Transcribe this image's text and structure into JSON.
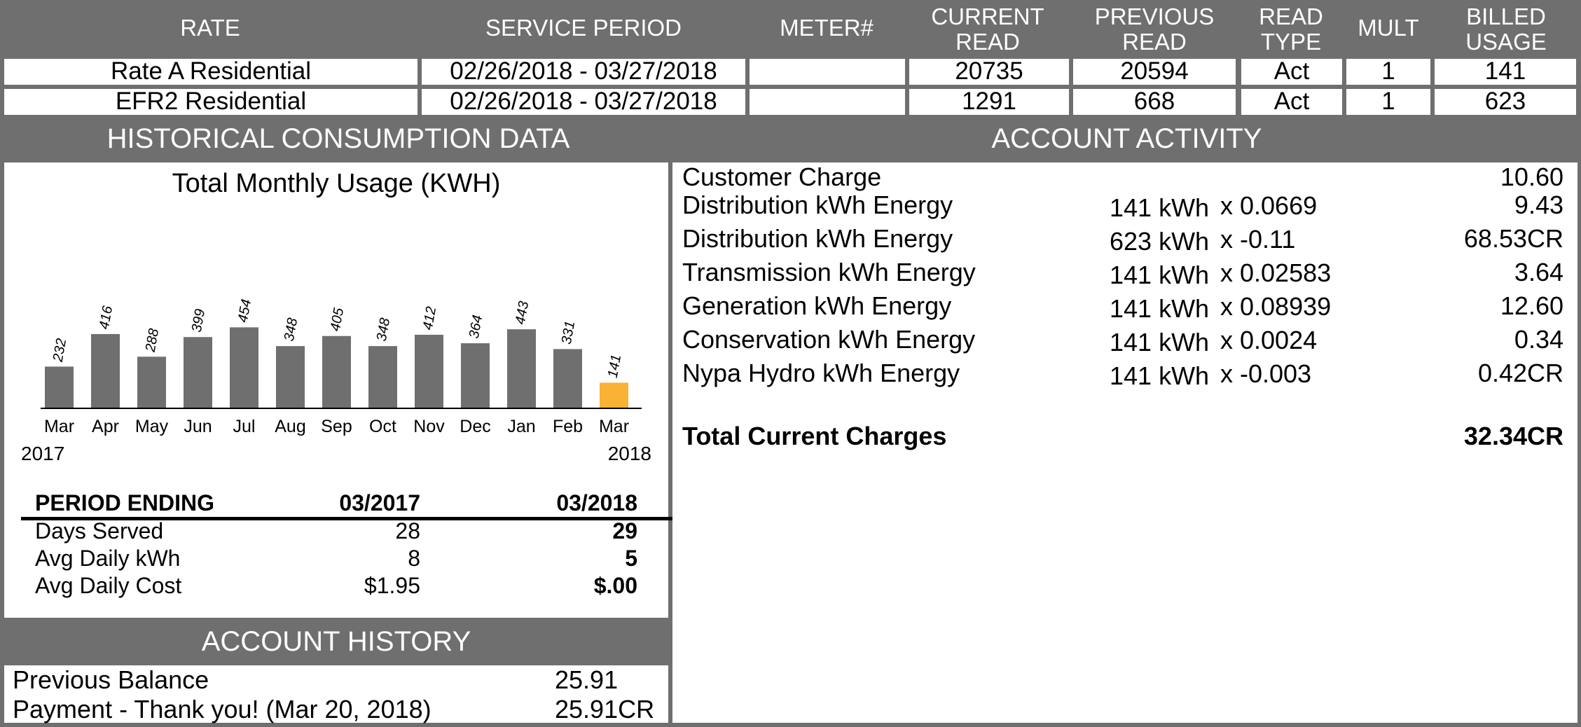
{
  "meter_table": {
    "headers": [
      {
        "line1": "RATE",
        "line2": ""
      },
      {
        "line1": "SERVICE PERIOD",
        "line2": ""
      },
      {
        "line1": "METER#",
        "line2": ""
      },
      {
        "line1": "CURRENT",
        "line2": "READ"
      },
      {
        "line1": "PREVIOUS",
        "line2": "READ"
      },
      {
        "line1": "READ",
        "line2": "TYPE"
      },
      {
        "line1": "MULT",
        "line2": ""
      },
      {
        "line1": "BILLED",
        "line2": "USAGE"
      }
    ],
    "rows": [
      {
        "rate": "Rate A Residential",
        "period": "02/26/2018 - 03/27/2018",
        "meter": "",
        "current": "20735",
        "previous": "20594",
        "type": "Act",
        "mult": "1",
        "usage": "141"
      },
      {
        "rate": "EFR2 Residential",
        "period": "02/26/2018 - 03/27/2018",
        "meter": "",
        "current": "1291",
        "previous": "668",
        "type": "Act",
        "mult": "1",
        "usage": "623"
      }
    ]
  },
  "historical": {
    "title": "HISTORICAL CONSUMPTION DATA",
    "chart_title": "Total Monthly Usage (KWH)",
    "year_start": "2017",
    "year_end": "2018",
    "period_table": {
      "header": [
        "PERIOD ENDING",
        "03/2017",
        "03/2018"
      ],
      "rows": [
        [
          "Days Served",
          "28",
          "29"
        ],
        [
          "Avg Daily kWh",
          "8",
          "5"
        ],
        [
          "Avg Daily Cost",
          "$1.95",
          "$.00"
        ]
      ]
    }
  },
  "chart_data": {
    "type": "bar",
    "title": "Total Monthly Usage (KWH)",
    "categories": [
      "Mar",
      "Apr",
      "May",
      "Jun",
      "Jul",
      "Aug",
      "Sep",
      "Oct",
      "Nov",
      "Dec",
      "Jan",
      "Feb",
      "Mar"
    ],
    "values": [
      232,
      416,
      288,
      399,
      454,
      348,
      405,
      348,
      412,
      364,
      443,
      331,
      141
    ],
    "xlabel": "",
    "ylabel": "",
    "ylim": [
      0,
      480
    ],
    "colors": {
      "bar": "#6f6f6f",
      "current": "#f9b233"
    },
    "grid": false,
    "highlight_index": 12
  },
  "account_activity": {
    "title": "ACCOUNT ACTIVITY",
    "items": [
      {
        "label": "Customer Charge",
        "qty": "",
        "rate": "",
        "amount": "10.60"
      },
      {
        "label": "Distribution kWh Energy",
        "qty": "141 kWh",
        "rate": "x 0.0669",
        "amount": "9.43"
      },
      {
        "label": "Distribution kWh Energy",
        "qty": "623 kWh",
        "rate": "x -0.11",
        "amount": "68.53CR"
      },
      {
        "label": "Transmission kWh Energy",
        "qty": "141 kWh",
        "rate": "x 0.02583",
        "amount": "3.64"
      },
      {
        "label": "Generation kWh Energy",
        "qty": "141 kWh",
        "rate": "x 0.08939",
        "amount": "12.60"
      },
      {
        "label": "Conservation kWh Energy",
        "qty": "141 kWh",
        "rate": "x 0.0024",
        "amount": "0.34"
      },
      {
        "label": "Nypa Hydro kWh Energy",
        "qty": "141 kWh",
        "rate": "x -0.003",
        "amount": "0.42CR"
      }
    ],
    "total_label": "Total Current Charges",
    "total_amount": "32.34CR"
  },
  "account_history": {
    "title": "ACCOUNT HISTORY",
    "items": [
      {
        "label": "Previous Balance",
        "amount": "25.91"
      },
      {
        "label": "Payment - Thank you! (Mar 20, 2018)",
        "amount": "25.91CR"
      }
    ]
  }
}
